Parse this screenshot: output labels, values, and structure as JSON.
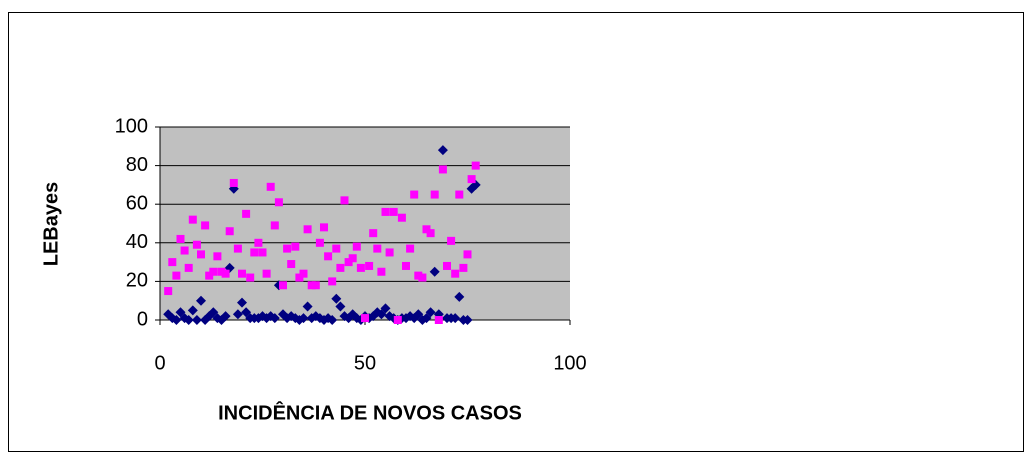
{
  "chart_data": {
    "type": "scatter",
    "x_label": "INCIDÊNCIA DE NOVOS CASOS",
    "y_label": "LEBayes",
    "x": [
      2,
      3,
      4,
      5,
      6,
      7,
      8,
      9,
      10,
      11,
      12,
      13,
      14,
      15,
      16,
      17,
      18,
      19,
      20,
      21,
      22,
      23,
      24,
      25,
      26,
      27,
      28,
      29,
      30,
      31,
      32,
      33,
      34,
      35,
      36,
      37,
      38,
      39,
      40,
      41,
      42,
      43,
      44,
      45,
      46,
      47,
      48,
      49,
      50,
      51,
      52,
      53,
      54,
      55,
      56,
      57,
      58,
      59,
      60,
      61,
      62,
      63,
      64,
      65,
      66,
      67,
      68,
      69,
      70,
      71,
      72,
      73,
      74,
      75,
      76,
      77
    ],
    "series": [
      {
        "color": "#000080",
        "marker": "diamond",
        "values": [
          3,
          1,
          0,
          4,
          1,
          0,
          5,
          0,
          10,
          0,
          2,
          4,
          1,
          0,
          2,
          27,
          68,
          3,
          9,
          4,
          1,
          1,
          1,
          2,
          1,
          2,
          1,
          18,
          3,
          1,
          2,
          1,
          0,
          1,
          7,
          1,
          2,
          1,
          0,
          1,
          0,
          11,
          7,
          2,
          1,
          3,
          1,
          0,
          2,
          1,
          2,
          4,
          3,
          6,
          2,
          1,
          0,
          1,
          1,
          2,
          1,
          3,
          0,
          1,
          4,
          25,
          3,
          88,
          1,
          1,
          1,
          12,
          0,
          0,
          68,
          70
        ]
      },
      {
        "color": "#ff00ff",
        "marker": "square",
        "values": [
          15,
          30,
          23,
          42,
          36,
          27,
          52,
          39,
          34,
          49,
          23,
          25,
          33,
          25,
          24,
          46,
          71,
          37,
          24,
          55,
          22,
          35,
          40,
          35,
          24,
          69,
          49,
          61,
          18,
          37,
          29,
          38,
          22,
          24,
          47,
          18,
          18,
          40,
          48,
          33,
          20,
          37,
          27,
          62,
          30,
          32,
          38,
          27,
          1,
          28,
          45,
          37,
          25,
          56,
          35,
          56,
          0,
          53,
          28,
          37,
          65,
          23,
          22,
          47,
          45,
          65,
          0,
          78,
          28,
          41,
          24,
          65,
          27,
          34,
          73,
          80
        ]
      }
    ],
    "xlim": [
      0,
      100
    ],
    "xticks": [
      0,
      50,
      100
    ],
    "ylim": [
      0,
      100
    ],
    "yticks": [
      0,
      20,
      40,
      60,
      80,
      100
    ],
    "grid": true,
    "plot_background": "#c0c0c0"
  }
}
